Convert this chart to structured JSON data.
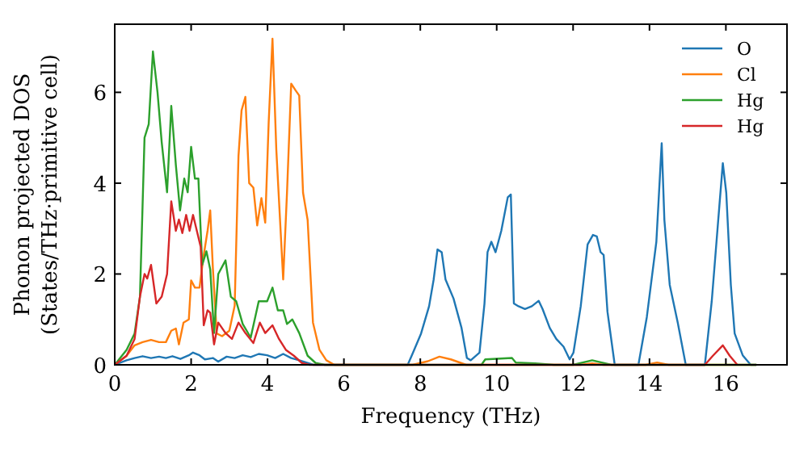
{
  "chart_data": {
    "type": "line",
    "xlabel": "Frequency (THz)",
    "ylabel": "Phonon projected DOS\n(States/THz·primitive cell)",
    "xlim": [
      0,
      17.6
    ],
    "ylim": [
      0,
      7.5
    ],
    "xticks": [
      0,
      2,
      4,
      6,
      8,
      10,
      12,
      14,
      16
    ],
    "yticks": [
      0,
      2,
      4,
      6
    ],
    "legend": "top right",
    "grid": false,
    "series": [
      {
        "name": "O",
        "color": "#1f77b4",
        "x": [
          0,
          0.31,
          0.52,
          0.73,
          0.95,
          1.16,
          1.34,
          1.51,
          1.72,
          1.94,
          2.05,
          2.22,
          2.36,
          2.57,
          2.71,
          2.93,
          3.14,
          3.35,
          3.56,
          3.77,
          3.99,
          4.2,
          4.41,
          4.62,
          4.83,
          5.05,
          5.2,
          7.67,
          7.81,
          8.02,
          8.23,
          8.35,
          8.45,
          8.56,
          8.66,
          8.87,
          9.08,
          9.22,
          9.32,
          9.55,
          9.68,
          9.76,
          9.86,
          9.97,
          10.12,
          10.29,
          10.37,
          10.45,
          10.57,
          10.74,
          10.92,
          11.1,
          11.2,
          11.39,
          11.56,
          11.75,
          11.91,
          12.01,
          12.2,
          12.38,
          12.52,
          12.62,
          12.72,
          12.8,
          12.9,
          13.09,
          13.71,
          13.93,
          14.18,
          14.32,
          14.39,
          14.53,
          14.74,
          14.95,
          15.45,
          15.63,
          15.8,
          15.92,
          16.01,
          16.13,
          16.23,
          16.44,
          16.65,
          16.8
        ],
        "values": [
          0,
          0.1,
          0.15,
          0.19,
          0.15,
          0.18,
          0.15,
          0.19,
          0.13,
          0.21,
          0.27,
          0.21,
          0.12,
          0.15,
          0.07,
          0.18,
          0.15,
          0.21,
          0.17,
          0.24,
          0.21,
          0.15,
          0.24,
          0.15,
          0.1,
          0.04,
          0,
          0,
          0.27,
          0.69,
          1.29,
          1.88,
          2.54,
          2.48,
          1.88,
          1.46,
          0.81,
          0.15,
          0.1,
          0.27,
          1.35,
          2.48,
          2.71,
          2.48,
          2.95,
          3.69,
          3.75,
          1.35,
          1.29,
          1.23,
          1.29,
          1.41,
          1.23,
          0.81,
          0.57,
          0.4,
          0.12,
          0.27,
          1.29,
          2.65,
          2.86,
          2.83,
          2.48,
          2.42,
          1.17,
          0,
          0,
          1.05,
          2.71,
          4.88,
          3.19,
          1.76,
          0.93,
          0,
          0,
          1.4,
          3.19,
          4.44,
          3.79,
          1.76,
          0.69,
          0.21,
          0,
          0
        ]
      },
      {
        "name": "Cl",
        "color": "#ff7f0e",
        "x": [
          0,
          0.31,
          0.52,
          0.73,
          0.95,
          1.16,
          1.34,
          1.48,
          1.6,
          1.68,
          1.8,
          1.94,
          2.0,
          2.1,
          2.22,
          2.32,
          2.43,
          2.5,
          2.57,
          2.67,
          2.81,
          3.0,
          3.14,
          3.24,
          3.32,
          3.42,
          3.52,
          3.63,
          3.73,
          3.84,
          3.94,
          4.03,
          4.13,
          4.23,
          4.41,
          4.51,
          4.62,
          4.73,
          4.83,
          4.93,
          5.05,
          5.19,
          5.36,
          5.54,
          5.75,
          7.8,
          8.2,
          8.5,
          8.8,
          9.2,
          12.2,
          12.5,
          12.8,
          13.9,
          14.2,
          14.5,
          16.8
        ],
        "values": [
          0,
          0.2,
          0.43,
          0.5,
          0.55,
          0.5,
          0.5,
          0.75,
          0.8,
          0.45,
          0.93,
          1.0,
          1.86,
          1.7,
          1.7,
          2.36,
          2.95,
          3.4,
          2.12,
          0.69,
          0.63,
          0.75,
          1.3,
          4.6,
          5.6,
          5.9,
          4.0,
          3.9,
          3.07,
          3.67,
          3.13,
          5.33,
          7.18,
          4.74,
          1.88,
          3.79,
          6.19,
          6.05,
          5.93,
          3.79,
          3.19,
          0.93,
          0.33,
          0.1,
          0,
          0,
          0.08,
          0.18,
          0.12,
          0,
          0,
          0.03,
          0,
          0,
          0.05,
          0,
          0
        ]
      },
      {
        "name": "Hg",
        "color": "#2ca02c",
        "x": [
          0,
          0.31,
          0.52,
          0.66,
          0.78,
          0.89,
          1.0,
          1.12,
          1.23,
          1.37,
          1.48,
          1.6,
          1.71,
          1.82,
          1.91,
          2.0,
          2.1,
          2.19,
          2.29,
          2.4,
          2.5,
          2.6,
          2.71,
          2.9,
          3.04,
          3.18,
          3.35,
          3.56,
          3.77,
          3.99,
          4.13,
          4.27,
          4.41,
          4.51,
          4.65,
          4.83,
          5.05,
          5.26,
          5.5,
          9.6,
          9.7,
          10.4,
          10.5,
          11.0,
          11.5,
          12.0,
          12.5,
          13.0,
          16.8
        ],
        "values": [
          0,
          0.33,
          0.69,
          1.5,
          5.0,
          5.3,
          6.9,
          6.0,
          4.9,
          3.8,
          5.7,
          4.4,
          3.4,
          4.1,
          3.8,
          4.8,
          4.1,
          4.1,
          2.2,
          2.5,
          2.1,
          0.7,
          2.0,
          2.3,
          1.5,
          1.4,
          0.9,
          0.6,
          1.4,
          1.4,
          1.7,
          1.2,
          1.2,
          0.9,
          1.0,
          0.7,
          0.2,
          0.04,
          0,
          0,
          0.12,
          0.15,
          0.05,
          0.03,
          0,
          0,
          0.1,
          0,
          0
        ]
      },
      {
        "name": "Hg",
        "color": "#d62728",
        "x": [
          0,
          0.31,
          0.52,
          0.66,
          0.78,
          0.85,
          0.95,
          1.09,
          1.23,
          1.37,
          1.48,
          1.6,
          1.68,
          1.77,
          1.87,
          1.96,
          2.05,
          2.15,
          2.25,
          2.33,
          2.43,
          2.5,
          2.6,
          2.71,
          2.9,
          3.07,
          3.24,
          3.42,
          3.63,
          3.8,
          3.94,
          4.13,
          4.3,
          4.48,
          4.69,
          4.9,
          5.1,
          15.45,
          15.66,
          15.92,
          16.1,
          16.3
        ],
        "values": [
          0,
          0.2,
          0.57,
          1.5,
          2.0,
          1.9,
          2.2,
          1.35,
          1.5,
          2.0,
          3.6,
          2.95,
          3.2,
          2.9,
          3.3,
          2.95,
          3.3,
          2.95,
          2.6,
          0.87,
          1.2,
          1.15,
          0.45,
          0.93,
          0.7,
          0.57,
          0.93,
          0.7,
          0.48,
          0.93,
          0.7,
          0.87,
          0.57,
          0.33,
          0.2,
          0.04,
          0,
          0,
          0.2,
          0.43,
          0.2,
          0
        ]
      }
    ]
  }
}
